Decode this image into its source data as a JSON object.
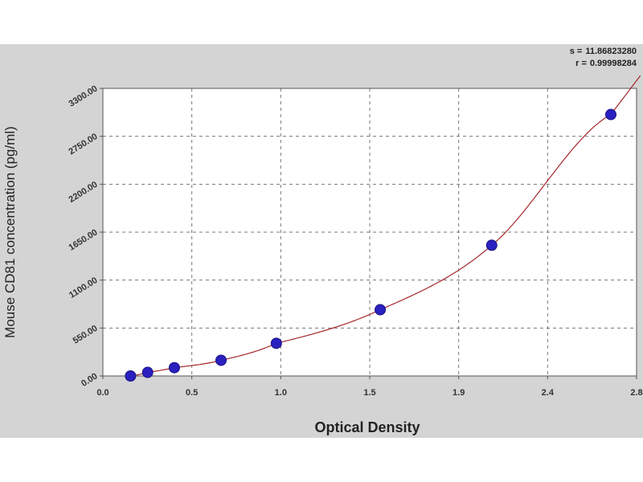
{
  "stats": {
    "s_label": "s =",
    "s_value": "11.86823280",
    "r_label": "r =",
    "r_value": "0.99998284"
  },
  "chart_data": {
    "type": "scatter",
    "xlabel": "Optical Density",
    "ylabel": "Mouse CD81 concentration (pg/ml)",
    "xlim": [
      0.0,
      2.8
    ],
    "ylim": [
      0,
      3300
    ],
    "xticks": [
      "0.0",
      "0.5",
      "1.0",
      "1.5",
      "1.9",
      "2.4",
      "2.8"
    ],
    "yticks": [
      "0.00",
      "550.00",
      "1100.00",
      "1650.00",
      "2200.00",
      "2750.00",
      "3300.00"
    ],
    "grid": true,
    "series": [
      {
        "x": [
          0.145,
          0.235,
          0.375,
          0.62,
          0.91,
          1.455,
          2.04,
          2.665
        ],
        "y": [
          0,
          41,
          95,
          180,
          375,
          760,
          1500,
          3000
        ]
      }
    ],
    "fit_curve": true,
    "colors": {
      "points": "#2a1fbf",
      "curve": "#a4282c",
      "grid": "#777777",
      "plot_bg": "#ffffff",
      "frame_bg": "#d4d4d4"
    }
  }
}
